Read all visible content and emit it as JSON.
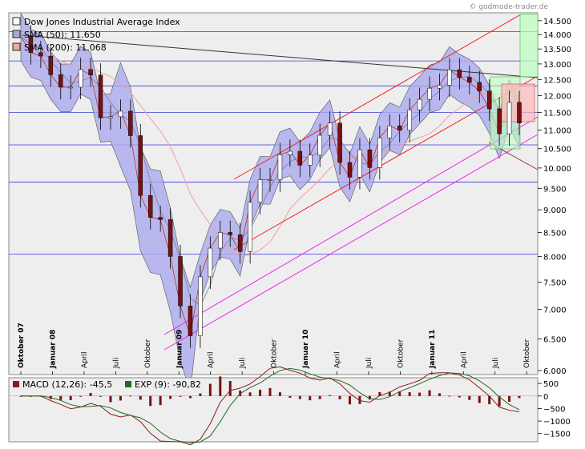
{
  "watermark": "© godmode-trader.de",
  "chart_data": [
    {
      "type": "candlestick",
      "title": "Dow Jones Industrial Average Index",
      "indicators": [
        {
          "label": "SMA (50): 11.650",
          "color": "#a8a8d8"
        },
        {
          "label": "SMA (200): 11.068",
          "color": "#f0a8a8"
        }
      ],
      "y_ticks": [
        "6.000",
        "6.500",
        "7.000",
        "7.500",
        "8.000",
        "8.500",
        "9.000",
        "9.500",
        "10.000",
        "10.500",
        "11.000",
        "11.500",
        "12.000",
        "12.500",
        "13.000",
        "13.500",
        "14.000",
        "14.500"
      ],
      "ylim": [
        6000,
        14700
      ],
      "scale": "log",
      "x_ticks": [
        {
          "label": "Oktober 07",
          "bold": true
        },
        {
          "label": "Januar 08",
          "bold": true
        },
        {
          "label": "April",
          "bold": false
        },
        {
          "label": "Juli",
          "bold": false
        },
        {
          "label": "Oktober",
          "bold": false
        },
        {
          "label": "Januar 09",
          "bold": true
        },
        {
          "label": "April",
          "bold": false
        },
        {
          "label": "Juli",
          "bold": false
        },
        {
          "label": "Oktober",
          "bold": false
        },
        {
          "label": "Januar 10",
          "bold": true
        },
        {
          "label": "April",
          "bold": false
        },
        {
          "label": "Juli",
          "bold": false
        },
        {
          "label": "Oktober",
          "bold": false
        },
        {
          "label": "Januar 11",
          "bold": true
        },
        {
          "label": "April",
          "bold": false
        },
        {
          "label": "Juli",
          "bold": false
        },
        {
          "label": "Oktober",
          "bold": false
        }
      ],
      "close_path": [
        [
          "2007-10",
          13930
        ],
        [
          "2007-11",
          13380
        ],
        [
          "2007-12",
          13260
        ],
        [
          "2008-01",
          12650
        ],
        [
          "2008-02",
          12260
        ],
        [
          "2008-03",
          12260
        ],
        [
          "2008-04",
          12820
        ],
        [
          "2008-05",
          12640
        ],
        [
          "2008-06",
          11350
        ],
        [
          "2008-07",
          11380
        ],
        [
          "2008-08",
          11540
        ],
        [
          "2008-09",
          10850
        ],
        [
          "2008-10",
          9330
        ],
        [
          "2008-11",
          8830
        ],
        [
          "2008-12",
          8780
        ],
        [
          "2009-01",
          8000
        ],
        [
          "2009-02",
          7060
        ],
        [
          "2009-03",
          6550
        ],
        [
          "2009-03b",
          7600
        ],
        [
          "2009-04",
          8170
        ],
        [
          "2009-05",
          8500
        ],
        [
          "2009-06",
          8450
        ],
        [
          "2009-07",
          8100
        ],
        [
          "2009-08",
          9170
        ],
        [
          "2009-09",
          9710
        ],
        [
          "2009-10",
          9710
        ],
        [
          "2009-11",
          10340
        ],
        [
          "2009-12",
          10430
        ],
        [
          "2010-01",
          10070
        ],
        [
          "2010-02",
          10330
        ],
        [
          "2010-03",
          10860
        ],
        [
          "2010-04",
          11200
        ],
        [
          "2010-05",
          10140
        ],
        [
          "2010-06",
          9770
        ],
        [
          "2010-07",
          10470
        ],
        [
          "2010-08",
          10010
        ],
        [
          "2010-09",
          10790
        ],
        [
          "2010-10",
          11120
        ],
        [
          "2010-11",
          11000
        ],
        [
          "2010-12",
          11580
        ],
        [
          "2011-01",
          11890
        ],
        [
          "2011-02",
          12230
        ],
        [
          "2011-03",
          12320
        ],
        [
          "2011-04",
          12810
        ],
        [
          "2011-05",
          12570
        ],
        [
          "2011-06",
          12410
        ],
        [
          "2011-07",
          12140
        ],
        [
          "2011-08",
          11610
        ],
        [
          "2011-09",
          10900
        ],
        [
          "2011-10",
          11800
        ],
        [
          "2011-11",
          11200
        ]
      ]
    },
    {
      "type": "macd",
      "legend": [
        {
          "label": "MACD (12,26): -45,5",
          "color": "#8b1a1a"
        },
        {
          "label": "EXP (9): -90,82",
          "color": "#1f6b1f"
        }
      ],
      "y_ticks": [
        "500",
        "0",
        "−500",
        "−1000",
        "−1500"
      ],
      "ylim": [
        -1700,
        600
      ]
    }
  ]
}
